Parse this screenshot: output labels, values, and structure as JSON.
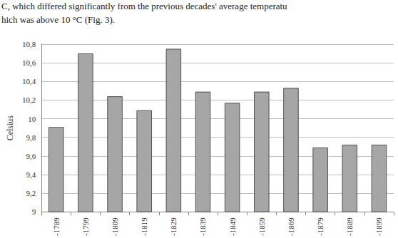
{
  "chart_data": {
    "type": "bar",
    "annotations": [
      "C, which differed significantly from the previous decades' average temperatu",
      "hich was above 10 °C (Fig. 3)."
    ],
    "y_label": "Celsius",
    "categories": [
      "-1789",
      "-1799",
      "-1809",
      "-1819",
      "-1829",
      "-1839",
      "-1849",
      "-1859",
      "-1869",
      "-1879",
      "-1889",
      "-1899"
    ],
    "values": [
      9.91,
      10.7,
      10.24,
      10.09,
      10.75,
      10.29,
      10.17,
      10.29,
      10.33,
      9.69,
      9.72,
      9.72
    ],
    "color": "#a6a6a6",
    "ylim": [
      9,
      10.8
    ],
    "yticks": [
      9,
      {
        "value": 9.2,
        "label": "9,2"
      },
      {
        "value": 9.4,
        "label": "9,4"
      },
      {
        "value": 9.6,
        "label": "9,6"
      },
      {
        "value": 9.8,
        "label": "9,8"
      },
      10,
      {
        "value": 10.2,
        "label": "10,2"
      },
      {
        "value": 10.4,
        "label": "10,4"
      },
      {
        "value": 10.6,
        "label": "10,6"
      },
      {
        "value": 10.8,
        "label": "10,8"
      }
    ],
    "grid": true
  }
}
